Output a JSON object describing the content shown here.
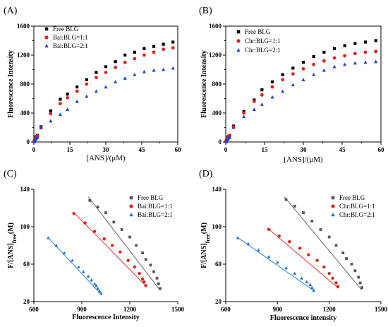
{
  "chart_data": [
    {
      "panel_label": "(A)",
      "type": "scatter",
      "xlabel": "[ANS]/(μM)",
      "ylabel": "Fluorescence Intensity",
      "xlim": [
        0,
        60
      ],
      "ylim": [
        0,
        1600
      ],
      "xticks": [
        "0",
        "15",
        "30",
        "45",
        "60"
      ],
      "yticks": [
        "0",
        "400",
        "800",
        "1200",
        "1600"
      ],
      "legend_position": "top-left",
      "series": [
        {
          "name": "Free BLG",
          "color": "#000000",
          "marker": "square",
          "x": [
            0.1,
            0.2,
            0.3,
            0.5,
            0.8,
            1,
            1.5,
            3,
            7,
            11,
            14,
            18,
            22,
            26,
            30,
            34,
            38,
            42,
            46,
            50,
            54,
            58
          ],
          "y": [
            5,
            15,
            25,
            40,
            60,
            75,
            90,
            210,
            430,
            590,
            660,
            760,
            860,
            960,
            1040,
            1110,
            1200,
            1240,
            1290,
            1320,
            1350,
            1380
          ]
        },
        {
          "name": "Bai:BLG=1:1",
          "color": "#e0201b",
          "marker": "circle",
          "x": [
            0.1,
            0.2,
            0.3,
            0.5,
            0.8,
            1,
            1.5,
            3,
            7,
            11,
            14,
            18,
            22,
            26,
            30,
            34,
            38,
            42,
            46,
            50,
            54,
            58
          ],
          "y": [
            5,
            15,
            25,
            40,
            55,
            70,
            85,
            195,
            390,
            530,
            610,
            700,
            800,
            890,
            960,
            1030,
            1100,
            1150,
            1200,
            1240,
            1280,
            1300
          ]
        },
        {
          "name": "Bai:BLG=2:1",
          "color": "#1f3fd6",
          "marker": "triangle",
          "x": [
            0.1,
            0.2,
            0.3,
            0.5,
            0.8,
            1,
            1.5,
            3,
            7,
            11,
            14,
            18,
            22,
            26,
            30,
            34,
            38,
            42,
            46,
            50,
            54,
            58
          ],
          "y": [
            5,
            10,
            20,
            30,
            45,
            55,
            65,
            200,
            290,
            380,
            450,
            560,
            630,
            700,
            760,
            830,
            880,
            930,
            970,
            990,
            1000,
            1020
          ]
        }
      ]
    },
    {
      "panel_label": "(B)",
      "type": "scatter",
      "xlabel": "[ANS]/(μM)",
      "ylabel": "Fluorescence Intensity",
      "xlim": [
        0,
        60
      ],
      "ylim": [
        0,
        1600
      ],
      "xticks": [
        "0",
        "15",
        "30",
        "45",
        "60"
      ],
      "yticks": [
        "0",
        "400",
        "800",
        "1200",
        "1600"
      ],
      "legend_position": "top-left",
      "series": [
        {
          "name": "Free BLG",
          "color": "#000000",
          "marker": "square",
          "x": [
            0.1,
            0.2,
            0.3,
            0.5,
            0.8,
            1,
            1.5,
            3,
            7,
            11,
            14,
            18,
            22,
            26,
            30,
            34,
            38,
            42,
            46,
            50,
            54,
            58
          ],
          "y": [
            5,
            15,
            25,
            40,
            60,
            75,
            90,
            220,
            420,
            580,
            720,
            830,
            930,
            1020,
            1100,
            1180,
            1240,
            1290,
            1330,
            1360,
            1380,
            1400
          ]
        },
        {
          "name": "Chr:BLG=1:1",
          "color": "#e0201b",
          "marker": "circle",
          "x": [
            0.1,
            0.2,
            0.3,
            0.5,
            0.8,
            1,
            1.5,
            3,
            7,
            11,
            14,
            18,
            22,
            26,
            30,
            34,
            38,
            42,
            46,
            50,
            54,
            58
          ],
          "y": [
            5,
            15,
            25,
            40,
            55,
            70,
            85,
            210,
            400,
            560,
            650,
            760,
            860,
            940,
            1010,
            1070,
            1120,
            1160,
            1190,
            1220,
            1240,
            1250
          ]
        },
        {
          "name": "Chr:BLG=2:1",
          "color": "#1f3fd6",
          "marker": "triangle",
          "x": [
            0.1,
            0.2,
            0.3,
            0.5,
            0.8,
            1,
            1.5,
            3,
            7,
            11,
            14,
            18,
            22,
            26,
            30,
            34,
            38,
            42,
            46,
            50,
            54,
            58
          ],
          "y": [
            5,
            10,
            20,
            30,
            45,
            55,
            65,
            200,
            350,
            450,
            520,
            620,
            700,
            790,
            860,
            930,
            990,
            1040,
            1070,
            1090,
            1100,
            1110
          ]
        }
      ]
    },
    {
      "panel_label": "(C)",
      "type": "scatter",
      "xlabel": "Fluorescence Intensity",
      "ylabel_main": "F/[ANS]",
      "ylabel_sub": "free",
      "ylabel_end": "(M)",
      "xlim": [
        600,
        1500
      ],
      "ylim": [
        20,
        140
      ],
      "xticks": [
        "600",
        "900",
        "1200",
        "1500"
      ],
      "yticks": [
        "20",
        "60",
        "100",
        "140"
      ],
      "legend_position": "top-right",
      "series": [
        {
          "name": "Free BLG",
          "color": "#555555",
          "marker": "square",
          "x": [
            950,
            1000,
            1050,
            1100,
            1150,
            1200,
            1240,
            1280,
            1300,
            1330,
            1350,
            1370,
            1380,
            1390
          ],
          "y": [
            128,
            121,
            115,
            105,
            97,
            89,
            80,
            72,
            65,
            59,
            52,
            45,
            39,
            34
          ],
          "fit": [
            [
              940,
              132
            ],
            [
              1390,
              32
            ]
          ]
        },
        {
          "name": "Bai:BLG=1:1",
          "color": "#e0201b",
          "marker": "circle",
          "x": [
            850,
            920,
            980,
            1040,
            1090,
            1140,
            1190,
            1230,
            1260,
            1280,
            1290,
            1300
          ],
          "y": [
            114,
            104,
            95,
            87,
            80,
            73,
            64,
            57,
            50,
            44,
            41,
            37
          ],
          "fit": [
            [
              845,
              116
            ],
            [
              1305,
              36
            ]
          ]
        },
        {
          "name": "Bai:BLG=2:1",
          "color": "#1b74d2",
          "marker": "triangle",
          "x": [
            690,
            740,
            790,
            840,
            880,
            910,
            940,
            960,
            980,
            990,
            1000,
            1010,
            1020
          ],
          "y": [
            88,
            80,
            72,
            64,
            57,
            52,
            47,
            43,
            39,
            37,
            34,
            31,
            29
          ],
          "fit": [
            [
              685,
              89
            ],
            [
              1025,
              27
            ]
          ]
        }
      ]
    },
    {
      "panel_label": "(D)",
      "type": "scatter",
      "xlabel": "Fluorescence intensity",
      "ylabel_main": "F/[ANS]",
      "ylabel_sub": "free",
      "ylabel_end": "(M)",
      "xlim": [
        600,
        1500
      ],
      "ylim": [
        20,
        140
      ],
      "xticks": [
        "600",
        "900",
        "1200",
        "1500"
      ],
      "yticks": [
        "20",
        "60",
        "100",
        "140"
      ],
      "legend_position": "top-right",
      "series": [
        {
          "name": "Free BLG",
          "color": "#555555",
          "marker": "square",
          "x": [
            950,
            1000,
            1050,
            1100,
            1150,
            1200,
            1240,
            1280,
            1300,
            1330,
            1350,
            1370,
            1380,
            1390
          ],
          "y": [
            129,
            122,
            115,
            106,
            97,
            89,
            80,
            72,
            66,
            60,
            53,
            46,
            40,
            35
          ],
          "fit": [
            [
              940,
              132
            ],
            [
              1390,
              32
            ]
          ]
        },
        {
          "name": "Chr:BLG=1:1",
          "color": "#e0201b",
          "marker": "circle",
          "x": [
            850,
            910,
            970,
            1030,
            1080,
            1130,
            1170,
            1200,
            1220,
            1240,
            1250
          ],
          "y": [
            97,
            90,
            84,
            77,
            70,
            64,
            57,
            50,
            45,
            40,
            36
          ],
          "fit": [
            [
              840,
              99
            ],
            [
              1255,
              34
            ]
          ]
        },
        {
          "name": "Chr:BLG=2:1",
          "color": "#1b74d2",
          "marker": "triangle",
          "x": [
            670,
            730,
            790,
            850,
            900,
            950,
            1000,
            1040,
            1070,
            1090,
            1100,
            1110
          ],
          "y": [
            88,
            82,
            75,
            68,
            62,
            56,
            50,
            45,
            41,
            38,
            35,
            32
          ],
          "fit": [
            [
              665,
              89
            ],
            [
              1115,
              31
            ]
          ]
        }
      ]
    }
  ]
}
